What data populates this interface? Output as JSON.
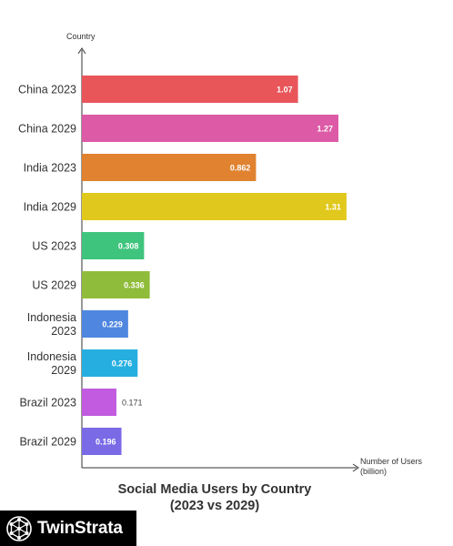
{
  "chart_data": {
    "type": "bar",
    "orientation": "horizontal",
    "title_line1": "Social Media Users by Country",
    "title_line2": "(2023 vs 2029)",
    "ylabel": "Country",
    "xlabel_line1": "Number of Users",
    "xlabel_line2": "(billion)",
    "xlim": [
      0,
      1.45
    ],
    "grid": false,
    "categories": [
      [
        "China 2023"
      ],
      [
        "China 2029"
      ],
      [
        "India 2023"
      ],
      [
        "India 2029"
      ],
      [
        "US 2023"
      ],
      [
        "US 2029"
      ],
      [
        "Indonesia",
        "2023"
      ],
      [
        "Indonesia",
        "2029"
      ],
      [
        "Brazil 2023"
      ],
      [
        "Brazil 2029"
      ]
    ],
    "values": [
      1.07,
      1.27,
      0.862,
      1.31,
      0.308,
      0.336,
      0.229,
      0.276,
      0.171,
      0.196
    ],
    "value_labels": [
      "1.07",
      "1.27",
      "0.862",
      "1.31",
      "0.308",
      "0.336",
      "0.229",
      "0.276",
      "0.171",
      "0.196"
    ],
    "colors": [
      "#e8565a",
      "#dd5aa6",
      "#e0822f",
      "#e1c81c",
      "#3fc47e",
      "#8fbc3a",
      "#4f86e0",
      "#26aee0",
      "#c25be0",
      "#7a6ae6"
    ]
  },
  "brand": {
    "name": "TwinStrata",
    "background": "#000000",
    "icon": "network-hexagon-icon"
  }
}
